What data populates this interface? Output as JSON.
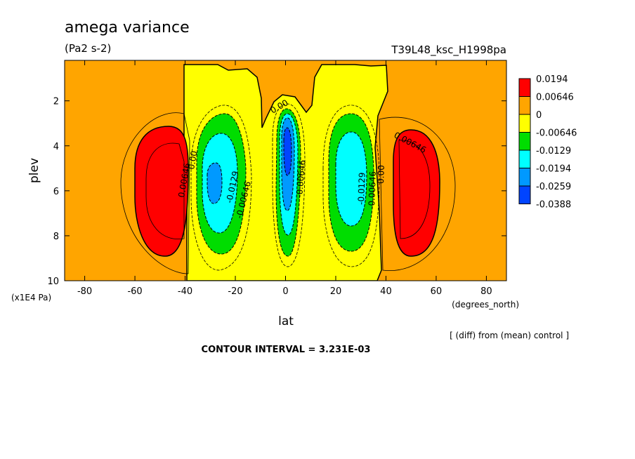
{
  "chart_data": {
    "type": "contour",
    "title": "amega variance",
    "units": "(Pa2 s-2)",
    "run_label": "T39L48_ksc_H1998pa",
    "xlabel": "lat",
    "x_units": "(degrees_north)",
    "ylabel": "plev",
    "y_units": "(x1E4 Pa)",
    "xlim": [
      -88,
      88
    ],
    "ylim": [
      10,
      0.2
    ],
    "x_ticks": [
      -80,
      -60,
      -40,
      -20,
      0,
      20,
      40,
      60,
      80
    ],
    "y_ticks": [
      2,
      4,
      6,
      8,
      10
    ],
    "x_tick_labels": [
      "-80",
      "-60",
      "-40",
      "-20",
      "0",
      "20",
      "40",
      "60",
      "80"
    ],
    "y_tick_labels": [
      "2",
      "4",
      "6",
      "8",
      "10"
    ],
    "legend_levels": [
      "0.0194",
      "0.00646",
      "0",
      "-0.00646",
      "-0.0129",
      "-0.0194",
      "-0.0259",
      "-0.0388"
    ],
    "legend_colors": [
      "#ff0000",
      "#ffa500",
      "#ffff00",
      "#00dd00",
      "#00ffff",
      "#0099ff",
      "#0044ff"
    ],
    "contour_labels": [
      "0.00646",
      "0.00",
      "-0.0129",
      "-0.00646",
      "0.00",
      "-0.00646",
      "-0.0129",
      "-0.00646",
      "0.00",
      "0.00646"
    ],
    "note": "[ (diff) from (mean) control ]",
    "contour_interval": "CONTOUR INTERVAL = 3.231E-03"
  }
}
